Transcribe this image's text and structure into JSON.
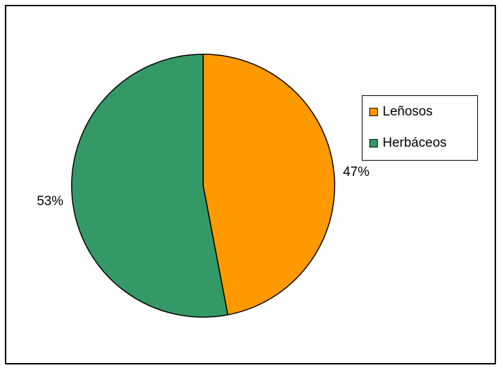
{
  "chart_data": {
    "type": "pie",
    "slices": [
      {
        "name": "Leñosos",
        "value": 47,
        "label": "47%",
        "color": "#FF9900"
      },
      {
        "name": "Herbáceos",
        "value": 53,
        "label": "53%",
        "color": "#339966"
      }
    ],
    "legend": {
      "position": "right",
      "entries": [
        "Leñosos",
        "Herbáceos"
      ]
    }
  }
}
